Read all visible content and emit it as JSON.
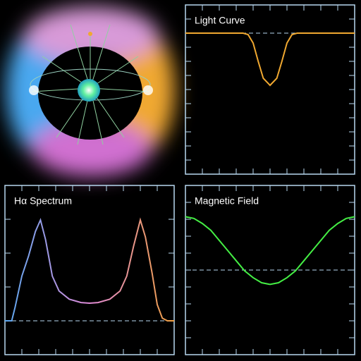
{
  "chart_data": [
    {
      "type": "line",
      "title": "Light Curve",
      "x": [
        0,
        0.1,
        0.2,
        0.3,
        0.34,
        0.37,
        0.4,
        0.43,
        0.46,
        0.5,
        0.54,
        0.57,
        0.6,
        0.63,
        0.66,
        0.7,
        0.8,
        0.9,
        1
      ],
      "values": [
        1,
        1,
        1,
        1,
        1,
        0.99,
        0.93,
        0.8,
        0.68,
        0.63,
        0.68,
        0.8,
        0.93,
        0.99,
        1,
        1,
        1,
        1,
        1
      ],
      "color": "#f0a830",
      "reference": 1,
      "xlim": [
        0,
        1
      ],
      "ylim": [
        0,
        1.2
      ],
      "xticks": [
        0,
        0.1,
        0.2,
        0.3,
        0.4,
        0.5,
        0.6,
        0.7,
        0.8,
        0.9,
        1
      ],
      "yticks": [
        0,
        0.1,
        0.2,
        0.3,
        0.4,
        0.5,
        0.6,
        0.7,
        0.8,
        0.9,
        1,
        1.1,
        1.2
      ]
    },
    {
      "type": "line",
      "title": "Hα Spectrum",
      "x": [
        0,
        0.04,
        0.06,
        0.1,
        0.14,
        0.18,
        0.21,
        0.24,
        0.28,
        0.32,
        0.38,
        0.45,
        0.5,
        0.55,
        0.62,
        0.68,
        0.72,
        0.76,
        0.8,
        0.83,
        0.87,
        0.9,
        0.93,
        0.96,
        1
      ],
      "values": [
        0,
        0,
        0.1,
        0.33,
        0.48,
        0.66,
        0.745,
        0.6,
        0.33,
        0.22,
        0.16,
        0.135,
        0.13,
        0.135,
        0.16,
        0.22,
        0.33,
        0.55,
        0.745,
        0.62,
        0.35,
        0.12,
        0.02,
        0,
        0
      ],
      "colors": [
        "#5aa8f0",
        "#e08ad8",
        "#f0a040"
      ],
      "reference": 0,
      "xlim": [
        0,
        1
      ],
      "ylim": [
        -0.25,
        1
      ],
      "xticks": [
        0,
        0.1,
        0.2,
        0.3,
        0.4,
        0.5,
        0.6,
        0.7,
        0.8,
        0.9,
        1
      ],
      "yticks": [
        -0.25,
        0,
        0.25,
        0.5,
        0.75,
        1
      ]
    },
    {
      "type": "line",
      "title": "Magnetic Field",
      "x": [
        0,
        0.05,
        0.1,
        0.15,
        0.2,
        0.25,
        0.3,
        0.35,
        0.4,
        0.45,
        0.5,
        0.55,
        0.6,
        0.65,
        0.7,
        0.75,
        0.8,
        0.85,
        0.9,
        0.95,
        1
      ],
      "values": [
        0.63,
        0.61,
        0.55,
        0.47,
        0.35,
        0.23,
        0.11,
        -0.01,
        -0.09,
        -0.15,
        -0.17,
        -0.15,
        -0.09,
        -0.01,
        0.11,
        0.23,
        0.35,
        0.47,
        0.55,
        0.61,
        0.63
      ],
      "color": "#44ee44",
      "reference": 0,
      "xlim": [
        0,
        1
      ],
      "ylim": [
        -1,
        1
      ],
      "xticks": [
        0,
        0.1,
        0.2,
        0.3,
        0.4,
        0.5,
        0.6,
        0.7,
        0.8,
        0.9,
        1
      ],
      "yticks": [
        -1,
        -0.8,
        -0.6,
        -0.4,
        -0.2,
        0,
        0.2,
        0.4,
        0.6,
        0.8,
        1
      ]
    }
  ]
}
